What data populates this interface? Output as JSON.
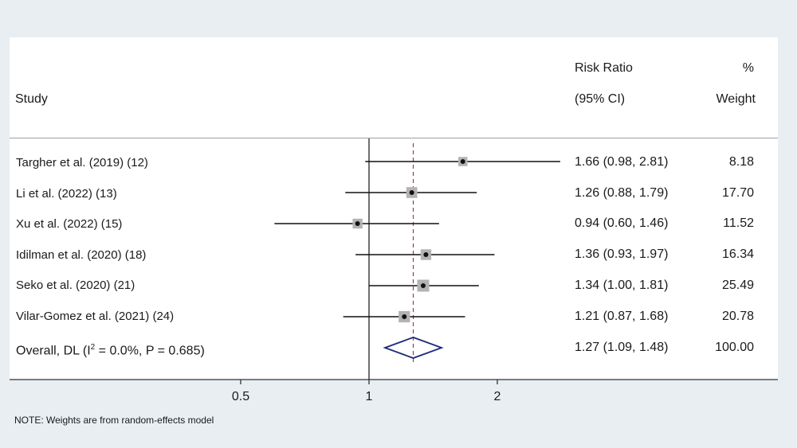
{
  "header": {
    "study": "Study",
    "rr_line1": "Risk Ratio",
    "rr_line2": "(95% CI)",
    "wt_line1": "%",
    "wt_line2": "Weight"
  },
  "overall": {
    "prefix": "Overall, DL (I",
    "sup": "2",
    "suffix": " = 0.0%, P = 0.685)",
    "ci_text": "1.27 (1.09, 1.48)",
    "weight_text": "100.00"
  },
  "note": "NOTE: Weights are from random-effects model",
  "chart_data": {
    "type": "forest",
    "xscale": "log",
    "xticks": [
      0.5,
      1,
      2
    ],
    "xtick_labels": [
      "0.5",
      "1",
      "2"
    ],
    "null_line": 1,
    "pooled_line": 1.27,
    "studies": [
      {
        "label": "Targher et al.  (2019) (12)",
        "rr": 1.66,
        "lo": 0.98,
        "hi": 2.81,
        "ci_text": "1.66 (0.98, 2.81)",
        "weight": 8.18,
        "weight_text": "8.18"
      },
      {
        "label": "Li et al. (2022) (13)",
        "rr": 1.26,
        "lo": 0.88,
        "hi": 1.79,
        "ci_text": "1.26 (0.88, 1.79)",
        "weight": 17.7,
        "weight_text": "17.70"
      },
      {
        "label": "Xu et al. (2022) (15)",
        "rr": 0.94,
        "lo": 0.6,
        "hi": 1.46,
        "ci_text": "0.94 (0.60, 1.46)",
        "weight": 11.52,
        "weight_text": "11.52"
      },
      {
        "label": "Idilman et al.  (2020) (18)",
        "rr": 1.36,
        "lo": 0.93,
        "hi": 1.97,
        "ci_text": "1.36 (0.93, 1.97)",
        "weight": 16.34,
        "weight_text": "16.34"
      },
      {
        "label": "Seko et al. (2020) (21)",
        "rr": 1.34,
        "lo": 1.0,
        "hi": 1.81,
        "ci_text": "1.34 (1.00, 1.81)",
        "weight": 25.49,
        "weight_text": "25.49"
      },
      {
        "label": "Vilar-Gomez et al. (2021) (24)",
        "rr": 1.21,
        "lo": 0.87,
        "hi": 1.68,
        "ci_text": "1.21 (0.87, 1.68)",
        "weight": 20.78,
        "weight_text": "20.78"
      }
    ],
    "pooled": {
      "rr": 1.27,
      "lo": 1.09,
      "hi": 1.48
    },
    "colors": {
      "marker_box": "#b3b3b3",
      "pooled_line": "#a0302e",
      "diamond": "#1f2a7a",
      "axis": "#333333"
    }
  }
}
